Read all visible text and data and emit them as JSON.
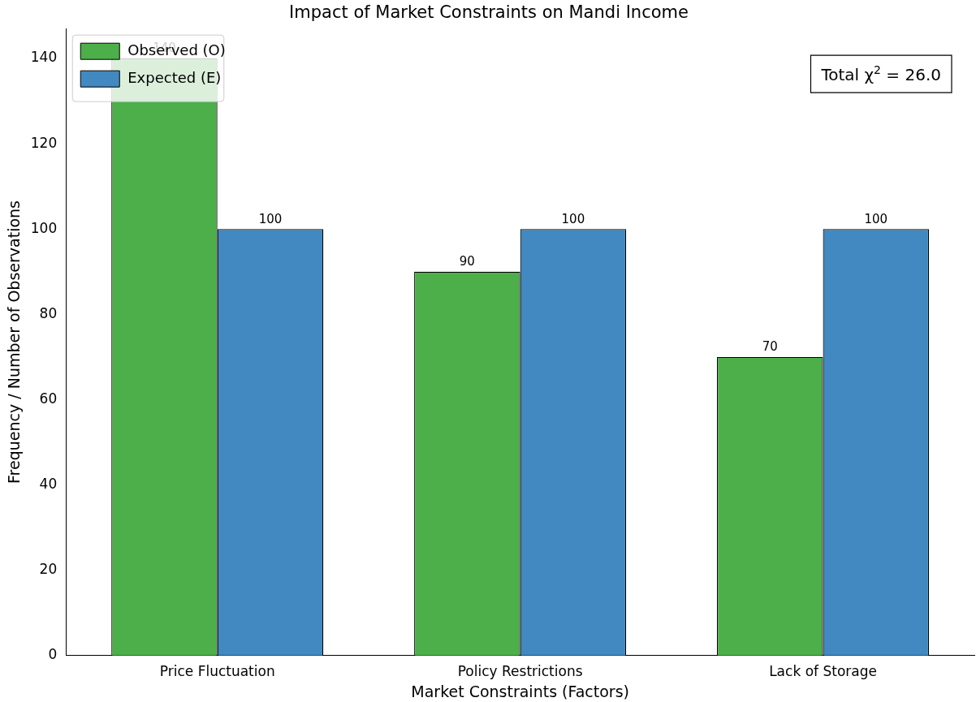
{
  "chart_data": {
    "type": "bar",
    "title": "Impact of Market Constraints on Mandi Income",
    "xlabel": "Market Constraints (Factors)",
    "ylabel": "Frequency / Number of Observations",
    "categories": [
      "Price Fluctuation",
      "Policy Restrictions",
      "Lack of Storage"
    ],
    "series": [
      {
        "name": "Observed (O)",
        "color": "#4daf4a",
        "values": [
          140,
          90,
          70
        ]
      },
      {
        "name": "Expected (E)",
        "color": "#4189c0",
        "values": [
          100,
          100,
          100
        ]
      }
    ],
    "ylim": [
      0,
      147
    ],
    "yticks": [
      0,
      20,
      40,
      60,
      80,
      100,
      120,
      140
    ],
    "grid": false,
    "legend": "top left",
    "data_labels": true,
    "annotations": [
      "Total χ$^{2}$ = 26.0"
    ]
  }
}
